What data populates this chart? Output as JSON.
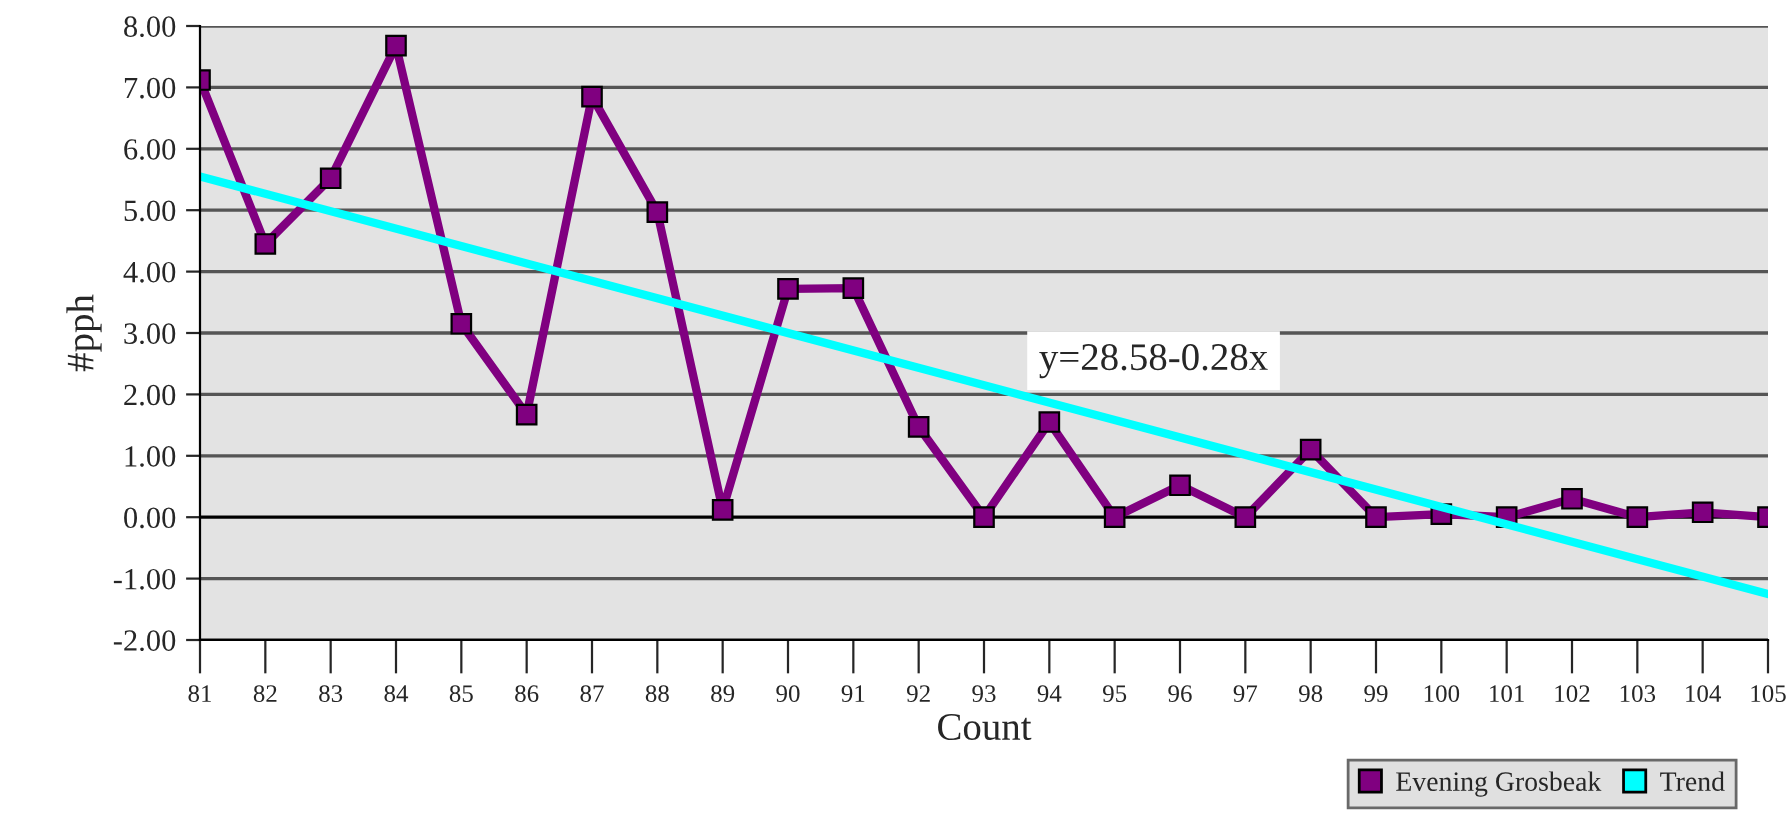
{
  "chart_data": {
    "type": "line",
    "xlabel": "Count",
    "ylabel": "#pph",
    "x": [
      81,
      82,
      83,
      84,
      85,
      86,
      87,
      88,
      89,
      90,
      91,
      92,
      93,
      94,
      95,
      96,
      97,
      98,
      99,
      100,
      101,
      102,
      103,
      104,
      105
    ],
    "series": [
      {
        "name": "Evening Grosbeak",
        "color": "#800080",
        "marker": "square",
        "values": [
          7.12,
          4.45,
          5.52,
          7.68,
          3.15,
          1.67,
          6.85,
          4.97,
          0.12,
          3.72,
          3.73,
          1.47,
          0,
          1.55,
          0,
          0.52,
          0,
          1.1,
          0,
          0.05,
          0,
          0.3,
          0,
          0.08,
          0
        ]
      },
      {
        "name": "Trend",
        "color": "#00ffff",
        "marker": "none",
        "x": [
          81,
          105
        ],
        "values": [
          5.55,
          -1.25
        ]
      }
    ],
    "xlim": [
      81,
      105
    ],
    "xticks": [
      81,
      82,
      83,
      84,
      85,
      86,
      87,
      88,
      89,
      90,
      91,
      92,
      93,
      94,
      95,
      96,
      97,
      98,
      99,
      100,
      101,
      102,
      103,
      104,
      105
    ],
    "ylim": [
      -2,
      8
    ],
    "yticks": [
      {
        "value": -2,
        "label": "-2.00"
      },
      {
        "value": -1,
        "label": "-1.00"
      },
      {
        "value": 0,
        "label": "0.00"
      },
      {
        "value": 1,
        "label": "1.00"
      },
      {
        "value": 2,
        "label": "2.00"
      },
      {
        "value": 3,
        "label": "3.00"
      },
      {
        "value": 4,
        "label": "4.00"
      },
      {
        "value": 5,
        "label": "5.00"
      },
      {
        "value": 6,
        "label": "6.00"
      },
      {
        "value": 7,
        "label": "7.00"
      },
      {
        "value": 8,
        "label": "8.00"
      }
    ],
    "grid": "y",
    "legend": "bottom right",
    "annotations": [
      "y=28.58-0.28x"
    ]
  }
}
